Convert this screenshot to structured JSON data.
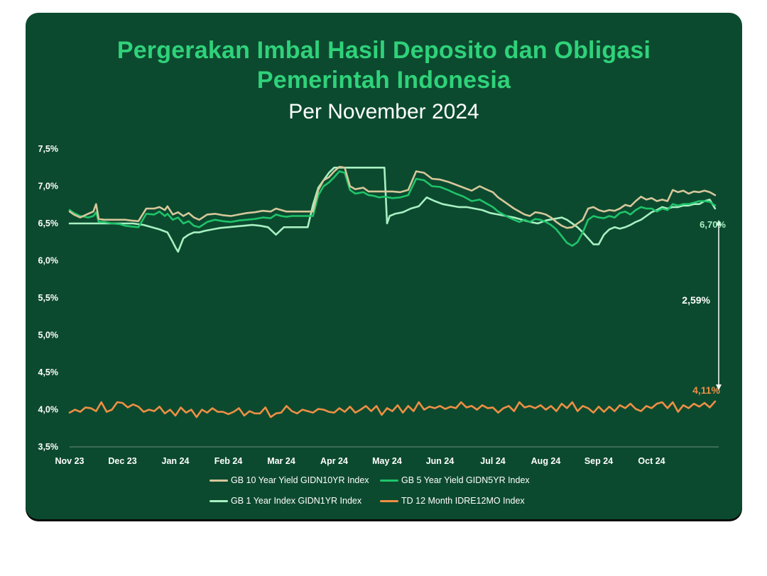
{
  "header": {
    "title_line1": "Pergerakan Imbal Hasil Deposito dan Obligasi",
    "title_line2": "Pemerintah Indonesia",
    "subtitle": "Per November 2024"
  },
  "colors": {
    "background": "#0c4a2f",
    "title": "#2fd27a",
    "gb10": "#d6c79a",
    "gb5": "#1fc46a",
    "gb1": "#a8f0c3",
    "td12": "#ee8f44",
    "axis": "#6e8f7e"
  },
  "annotations": {
    "gb_last": "6,70%",
    "td_last": "4,11%",
    "spread": "2,59%"
  },
  "chart_data": {
    "type": "line",
    "title": "Pergerakan Imbal Hasil Deposito dan Obligasi Pemerintah Indonesia",
    "subtitle": "Per November 2024",
    "xlabel": "",
    "ylabel": "",
    "x_ticks": [
      "Nov 23",
      "Dec 23",
      "Jan 24",
      "Feb 24",
      "Mar 24",
      "Apr 24",
      "May 24",
      "Jun 24",
      "Jul 24",
      "Aug 24",
      "Sep 24",
      "Oct 24"
    ],
    "x_range": [
      0,
      12.2
    ],
    "y_ticks": [
      "3,5%",
      "4,0%",
      "4,5%",
      "5,0%",
      "5,5%",
      "6,0%",
      "6,5%",
      "7,0%",
      "7,5%"
    ],
    "ylim": [
      3.5,
      7.5
    ],
    "grid": false,
    "legend_position": "bottom",
    "series": [
      {
        "name": "GB 10 Year Yield GIDN10YR Index",
        "color": "#d6c79a",
        "x": [
          0,
          0.08,
          0.2,
          0.35,
          0.45,
          0.5,
          0.55,
          0.65,
          0.8,
          0.95,
          1.05,
          1.15,
          1.3,
          1.45,
          1.6,
          1.7,
          1.8,
          1.85,
          1.95,
          2.05,
          2.15,
          2.25,
          2.35,
          2.45,
          2.6,
          2.75,
          2.9,
          3.05,
          3.2,
          3.35,
          3.5,
          3.65,
          3.8,
          3.9,
          4.0,
          4.1,
          4.2,
          4.35,
          4.5,
          4.6,
          4.7,
          4.8,
          4.9,
          5.0,
          5.1,
          5.2,
          5.3,
          5.4,
          5.55,
          5.65,
          5.75,
          5.85,
          5.95,
          6.1,
          6.25,
          6.4,
          6.55,
          6.7,
          6.85,
          7.0,
          7.15,
          7.3,
          7.45,
          7.6,
          7.75,
          7.9,
          8.0,
          8.1,
          8.2,
          8.3,
          8.4,
          8.5,
          8.6,
          8.7,
          8.8,
          8.9,
          9.0,
          9.1,
          9.2,
          9.3,
          9.4,
          9.5,
          9.6,
          9.7,
          9.8,
          9.9,
          10.0,
          10.1,
          10.2,
          10.3,
          10.4,
          10.5,
          10.6,
          10.7,
          10.8,
          10.9,
          11.0,
          11.1,
          11.2,
          11.3,
          11.4,
          11.5,
          11.6,
          11.7,
          11.8,
          11.9,
          12.0,
          12.1,
          12.2
        ],
        "values": [
          6.66,
          6.62,
          6.58,
          6.63,
          6.66,
          6.76,
          6.56,
          6.55,
          6.55,
          6.55,
          6.55,
          6.54,
          6.53,
          6.7,
          6.7,
          6.72,
          6.68,
          6.73,
          6.62,
          6.65,
          6.6,
          6.64,
          6.58,
          6.55,
          6.62,
          6.63,
          6.61,
          6.6,
          6.62,
          6.64,
          6.65,
          6.67,
          6.66,
          6.7,
          6.68,
          6.66,
          6.66,
          6.66,
          6.66,
          6.66,
          6.95,
          7.08,
          7.12,
          7.2,
          7.26,
          7.25,
          7.0,
          6.96,
          6.98,
          6.93,
          6.93,
          6.93,
          6.93,
          6.93,
          6.92,
          6.95,
          7.2,
          7.18,
          7.1,
          7.09,
          7.06,
          7.02,
          6.98,
          6.94,
          7.0,
          6.95,
          6.92,
          6.85,
          6.8,
          6.75,
          6.7,
          6.66,
          6.62,
          6.6,
          6.65,
          6.64,
          6.62,
          6.58,
          6.52,
          6.47,
          6.44,
          6.45,
          6.5,
          6.55,
          6.7,
          6.72,
          6.68,
          6.66,
          6.68,
          6.67,
          6.7,
          6.75,
          6.73,
          6.8,
          6.86,
          6.82,
          6.84,
          6.8,
          6.82,
          6.8,
          6.95,
          6.92,
          6.94,
          6.9,
          6.93,
          6.92,
          6.94,
          6.92,
          6.88
        ]
      },
      {
        "name": "GB 5 Year Yield GIDN5YR Index",
        "color": "#1fc46a",
        "x": [
          0,
          0.08,
          0.2,
          0.35,
          0.45,
          0.5,
          0.55,
          0.65,
          0.8,
          0.95,
          1.05,
          1.15,
          1.3,
          1.45,
          1.6,
          1.7,
          1.8,
          1.85,
          1.95,
          2.05,
          2.15,
          2.25,
          2.35,
          2.45,
          2.6,
          2.75,
          2.9,
          3.05,
          3.2,
          3.35,
          3.5,
          3.65,
          3.8,
          3.9,
          4.0,
          4.1,
          4.2,
          4.35,
          4.5,
          4.6,
          4.7,
          4.8,
          4.9,
          5.0,
          5.1,
          5.2,
          5.3,
          5.4,
          5.55,
          5.65,
          5.75,
          5.85,
          5.95,
          6.1,
          6.25,
          6.4,
          6.55,
          6.7,
          6.85,
          7.0,
          7.15,
          7.3,
          7.45,
          7.6,
          7.75,
          7.9,
          8.0,
          8.1,
          8.2,
          8.3,
          8.4,
          8.5,
          8.6,
          8.7,
          8.8,
          8.9,
          9.0,
          9.1,
          9.2,
          9.3,
          9.4,
          9.5,
          9.6,
          9.7,
          9.8,
          9.9,
          10.0,
          10.1,
          10.2,
          10.3,
          10.4,
          10.5,
          10.6,
          10.7,
          10.8,
          10.9,
          11.0,
          11.1,
          11.2,
          11.3,
          11.4,
          11.5,
          11.6,
          11.7,
          11.8,
          11.9,
          12.0,
          12.1,
          12.2
        ],
        "values": [
          6.68,
          6.64,
          6.6,
          6.58,
          6.6,
          6.65,
          6.52,
          6.52,
          6.5,
          6.49,
          6.47,
          6.46,
          6.45,
          6.63,
          6.62,
          6.66,
          6.6,
          6.63,
          6.55,
          6.58,
          6.5,
          6.53,
          6.47,
          6.45,
          6.52,
          6.55,
          6.53,
          6.52,
          6.54,
          6.55,
          6.56,
          6.58,
          6.57,
          6.62,
          6.6,
          6.59,
          6.6,
          6.6,
          6.6,
          6.6,
          6.88,
          7.0,
          7.05,
          7.12,
          7.2,
          7.18,
          6.95,
          6.9,
          6.92,
          6.88,
          6.87,
          6.85,
          6.86,
          6.84,
          6.85,
          6.88,
          7.1,
          7.08,
          7.0,
          6.99,
          6.95,
          6.9,
          6.86,
          6.8,
          6.82,
          6.76,
          6.72,
          6.66,
          6.62,
          6.58,
          6.55,
          6.52,
          6.55,
          6.52,
          6.56,
          6.55,
          6.52,
          6.48,
          6.42,
          6.33,
          6.24,
          6.2,
          6.25,
          6.38,
          6.55,
          6.6,
          6.58,
          6.57,
          6.6,
          6.58,
          6.64,
          6.66,
          6.62,
          6.68,
          6.72,
          6.7,
          6.7,
          6.66,
          6.7,
          6.68,
          6.76,
          6.74,
          6.76,
          6.76,
          6.78,
          6.8,
          6.8,
          6.79,
          6.74
        ]
      },
      {
        "name": "GB 1 Year Index GIDN1YR Index",
        "color": "#a8f0c3",
        "x": [
          0,
          0.3,
          0.6,
          0.9,
          1.2,
          1.4,
          1.55,
          1.7,
          1.85,
          1.95,
          2.0,
          2.05,
          2.15,
          2.25,
          2.35,
          2.45,
          2.55,
          2.7,
          2.85,
          3.0,
          3.15,
          3.3,
          3.45,
          3.6,
          3.75,
          3.9,
          4.05,
          4.2,
          4.35,
          4.5,
          4.6,
          4.7,
          4.8,
          4.9,
          5.0,
          5.1,
          5.2,
          5.3,
          5.45,
          5.6,
          5.75,
          5.85,
          5.95,
          6.0,
          6.05,
          6.15,
          6.3,
          6.45,
          6.6,
          6.75,
          6.9,
          7.05,
          7.2,
          7.35,
          7.5,
          7.65,
          7.8,
          7.95,
          8.1,
          8.25,
          8.4,
          8.55,
          8.7,
          8.85,
          9.0,
          9.15,
          9.3,
          9.4,
          9.5,
          9.6,
          9.7,
          9.8,
          9.9,
          10.0,
          10.1,
          10.2,
          10.3,
          10.4,
          10.5,
          10.6,
          10.7,
          10.8,
          10.9,
          11.0,
          11.1,
          11.2,
          11.3,
          11.4,
          11.5,
          11.6,
          11.7,
          11.8,
          11.9,
          12.0,
          12.1,
          12.2
        ],
        "values": [
          6.5,
          6.5,
          6.5,
          6.5,
          6.5,
          6.48,
          6.45,
          6.42,
          6.38,
          6.25,
          6.18,
          6.12,
          6.3,
          6.35,
          6.38,
          6.38,
          6.4,
          6.42,
          6.44,
          6.45,
          6.46,
          6.47,
          6.48,
          6.47,
          6.45,
          6.35,
          6.45,
          6.45,
          6.45,
          6.45,
          6.75,
          6.98,
          7.08,
          7.18,
          7.25,
          7.25,
          7.25,
          7.25,
          7.25,
          7.25,
          7.25,
          7.25,
          7.25,
          6.5,
          6.6,
          6.63,
          6.65,
          6.7,
          6.73,
          6.85,
          6.8,
          6.76,
          6.74,
          6.72,
          6.72,
          6.7,
          6.68,
          6.64,
          6.62,
          6.6,
          6.58,
          6.55,
          6.52,
          6.5,
          6.54,
          6.56,
          6.58,
          6.55,
          6.5,
          6.45,
          6.38,
          6.3,
          6.22,
          6.22,
          6.35,
          6.42,
          6.45,
          6.43,
          6.45,
          6.48,
          6.52,
          6.55,
          6.6,
          6.65,
          6.68,
          6.72,
          6.7,
          6.72,
          6.72,
          6.74,
          6.74,
          6.76,
          6.76,
          6.8,
          6.82,
          6.7
        ]
      },
      {
        "name": "TD 12 Month IDRE12MO Index",
        "color": "#ee8f44",
        "x": [
          0,
          0.1,
          0.2,
          0.3,
          0.4,
          0.5,
          0.6,
          0.7,
          0.8,
          0.9,
          1.0,
          1.1,
          1.2,
          1.3,
          1.4,
          1.5,
          1.6,
          1.7,
          1.8,
          1.9,
          2.0,
          2.1,
          2.2,
          2.3,
          2.4,
          2.5,
          2.6,
          2.7,
          2.8,
          2.9,
          3.0,
          3.1,
          3.2,
          3.3,
          3.4,
          3.5,
          3.6,
          3.7,
          3.8,
          3.9,
          4.0,
          4.1,
          4.2,
          4.3,
          4.4,
          4.5,
          4.6,
          4.7,
          4.8,
          4.9,
          5.0,
          5.1,
          5.2,
          5.3,
          5.4,
          5.5,
          5.6,
          5.7,
          5.8,
          5.9,
          6.0,
          6.1,
          6.2,
          6.3,
          6.4,
          6.5,
          6.6,
          6.7,
          6.8,
          6.9,
          7.0,
          7.1,
          7.2,
          7.3,
          7.4,
          7.5,
          7.6,
          7.7,
          7.8,
          7.9,
          8.0,
          8.1,
          8.2,
          8.3,
          8.4,
          8.5,
          8.6,
          8.7,
          8.8,
          8.9,
          9.0,
          9.1,
          9.2,
          9.3,
          9.4,
          9.5,
          9.6,
          9.7,
          9.8,
          9.9,
          10.0,
          10.1,
          10.2,
          10.3,
          10.4,
          10.5,
          10.6,
          10.7,
          10.8,
          10.9,
          11.0,
          11.1,
          11.2,
          11.3,
          11.4,
          11.5,
          11.6,
          11.7,
          11.8,
          11.9,
          12.0,
          12.1,
          12.2
        ],
        "values": [
          3.96,
          4.0,
          3.97,
          4.03,
          4.02,
          3.98,
          4.1,
          3.97,
          4.0,
          4.1,
          4.09,
          4.03,
          4.07,
          4.04,
          3.97,
          4.0,
          3.98,
          4.04,
          3.95,
          4.0,
          3.92,
          4.03,
          3.96,
          4.0,
          3.9,
          4.0,
          3.96,
          4.02,
          3.97,
          3.97,
          3.94,
          3.97,
          4.02,
          3.92,
          3.98,
          3.95,
          3.95,
          4.03,
          3.9,
          3.95,
          3.96,
          4.05,
          3.98,
          3.95,
          4.0,
          3.98,
          3.96,
          4.01,
          4.0,
          3.97,
          3.96,
          4.02,
          3.97,
          4.04,
          3.96,
          4.0,
          4.05,
          3.98,
          4.05,
          3.93,
          4.02,
          3.98,
          4.06,
          3.96,
          4.05,
          3.98,
          4.1,
          4.0,
          4.04,
          4.02,
          4.05,
          4.01,
          4.04,
          4.02,
          4.1,
          4.03,
          4.05,
          4.0,
          4.06,
          4.02,
          4.03,
          3.96,
          4.02,
          4.05,
          3.98,
          4.1,
          4.03,
          4.05,
          4.02,
          4.06,
          4.0,
          4.05,
          3.98,
          4.08,
          4.02,
          4.1,
          3.98,
          4.05,
          4.02,
          3.96,
          4.04,
          3.97,
          4.04,
          3.98,
          4.06,
          4.02,
          4.08,
          4.01,
          3.98,
          4.05,
          4.02,
          4.08,
          4.1,
          4.02,
          4.1,
          3.97,
          4.06,
          4.02,
          4.08,
          4.04,
          4.09,
          4.03,
          4.11
        ]
      }
    ]
  }
}
